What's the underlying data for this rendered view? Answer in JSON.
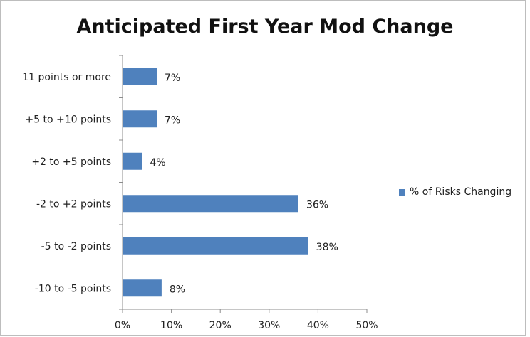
{
  "chart_data": {
    "type": "bar",
    "orientation": "horizontal",
    "title": "Anticipated First Year Mod Change",
    "categories": [
      "11 points or more",
      "+5 to +10 points",
      "+2 to +5 points",
      "-2 to +2 points",
      "-5 to -2 points",
      "-10 to -5 points"
    ],
    "series": [
      {
        "name": "% of Risks Changing",
        "values": [
          7,
          7,
          4,
          36,
          38,
          8
        ],
        "color": "#4f81bd"
      }
    ],
    "data_labels": [
      "7%",
      "7%",
      "4%",
      "36%",
      "38%",
      "8%"
    ],
    "x_ticks": [
      "0%",
      "10%",
      "20%",
      "30%",
      "40%",
      "50%"
    ],
    "xlim": [
      0,
      50
    ],
    "unit": "%",
    "grid": false,
    "legend_position": "right"
  }
}
